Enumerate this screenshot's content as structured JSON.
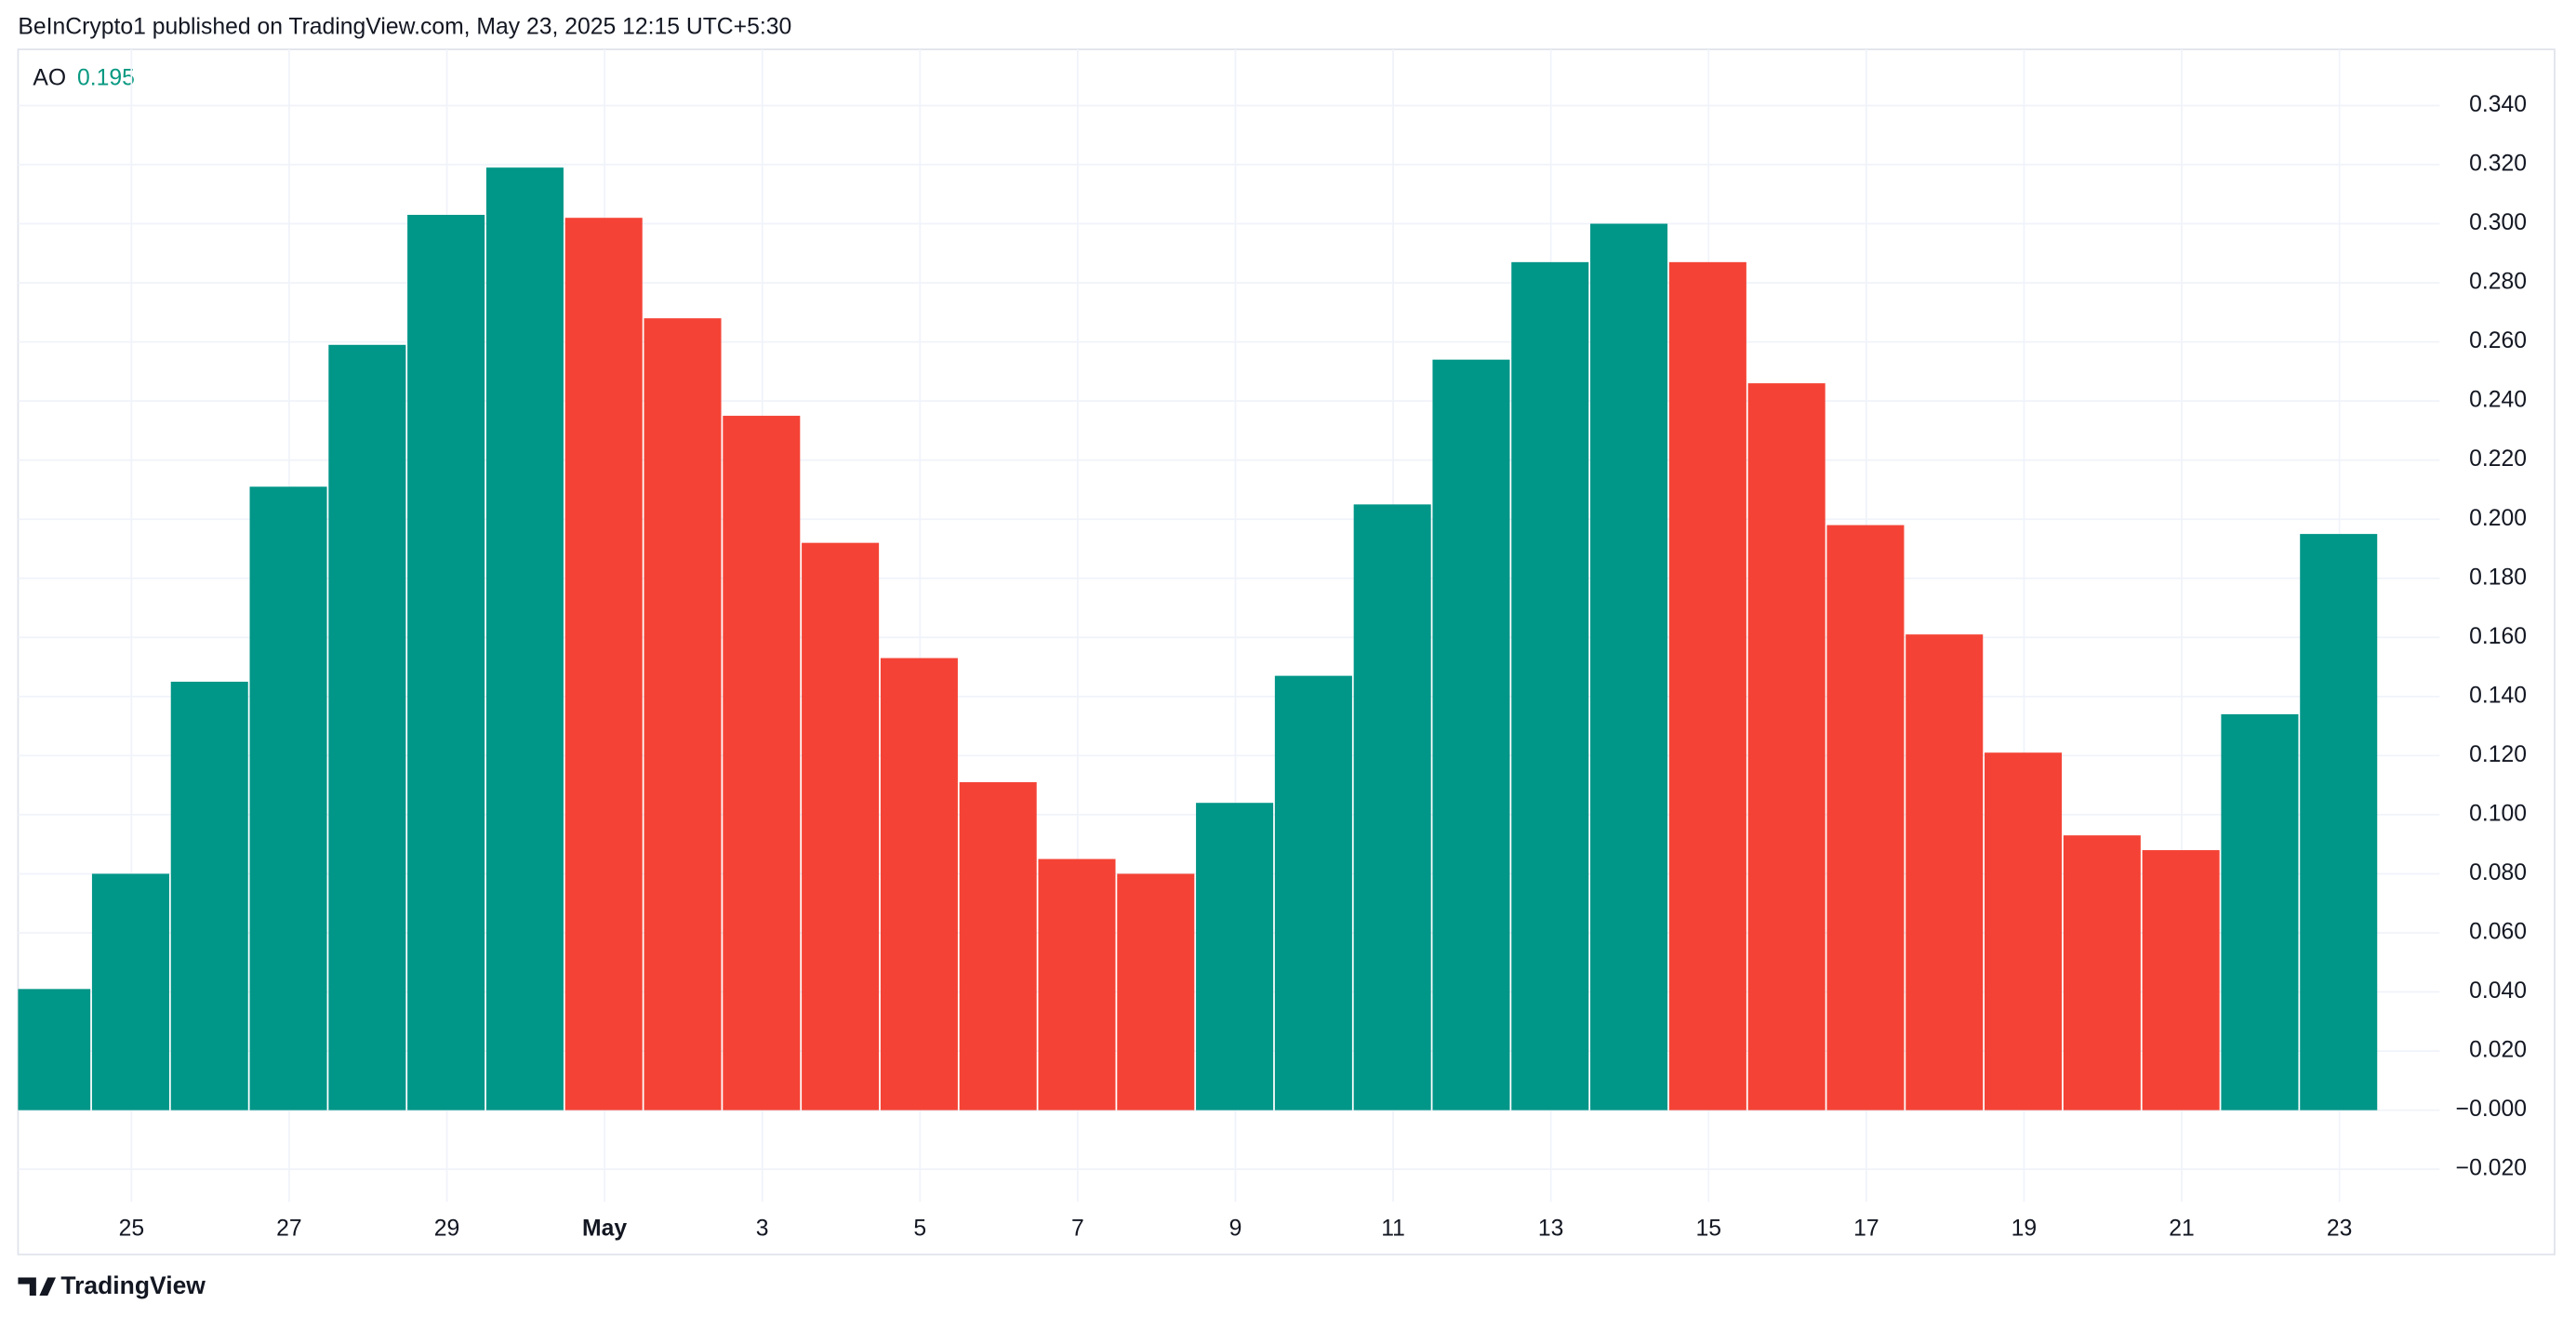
{
  "header": "BeInCrypto1 published on TradingView.com, May 23, 2025 12:15 UTC+5:30",
  "footer": "TradingView",
  "chart_data": {
    "type": "bar",
    "indicator": "AO",
    "indicator_value": 0.195,
    "categories": [
      null,
      "25",
      null,
      "27",
      null,
      "29",
      null,
      "May",
      null,
      "3",
      null,
      "5",
      null,
      "7",
      null,
      "9",
      null,
      "11",
      null,
      "13",
      null,
      "15",
      null,
      "17",
      null,
      "19",
      null,
      "21",
      null,
      "23"
    ],
    "values": [
      0.041,
      0.08,
      0.145,
      0.211,
      0.259,
      0.303,
      0.319,
      0.302,
      0.268,
      0.235,
      0.192,
      0.153,
      0.111,
      0.085,
      0.08,
      0.104,
      0.147,
      0.205,
      0.254,
      0.287,
      0.3,
      0.287,
      0.246,
      0.198,
      0.161,
      0.121,
      0.093,
      0.088,
      0.134,
      0.195
    ],
    "colors": [
      "#009688",
      "#009688",
      "#009688",
      "#009688",
      "#009688",
      "#009688",
      "#009688",
      "#f44336",
      "#f44336",
      "#f44336",
      "#f44336",
      "#f44336",
      "#f44336",
      "#f44336",
      "#f44336",
      "#009688",
      "#009688",
      "#009688",
      "#009688",
      "#009688",
      "#009688",
      "#f44336",
      "#f44336",
      "#f44336",
      "#f44336",
      "#f44336",
      "#f44336",
      "#f44336",
      "#009688",
      "#009688"
    ],
    "ylim": [
      -0.031,
      0.359
    ],
    "yticks": [
      {
        "value": -0.02,
        "label": "−0.020"
      },
      {
        "value": 0,
        "label": "−0.000"
      },
      {
        "value": 0.02,
        "label": "0.020"
      },
      {
        "value": 0.04,
        "label": "0.040"
      },
      {
        "value": 0.06,
        "label": "0.060"
      },
      {
        "value": 0.08,
        "label": "0.080"
      },
      {
        "value": 0.1,
        "label": "0.100"
      },
      {
        "value": 0.12,
        "label": "0.120"
      },
      {
        "value": 0.14,
        "label": "0.140"
      },
      {
        "value": 0.16,
        "label": "0.160"
      },
      {
        "value": 0.18,
        "label": "0.180"
      },
      {
        "value": 0.2,
        "label": "0.200"
      },
      {
        "value": 0.22,
        "label": "0.220"
      },
      {
        "value": 0.24,
        "label": "0.240"
      },
      {
        "value": 0.26,
        "label": "0.260"
      },
      {
        "value": 0.28,
        "label": "0.280"
      },
      {
        "value": 0.3,
        "label": "0.300"
      },
      {
        "value": 0.32,
        "label": "0.320"
      },
      {
        "value": 0.34,
        "label": "0.340"
      }
    ],
    "grid": true
  }
}
